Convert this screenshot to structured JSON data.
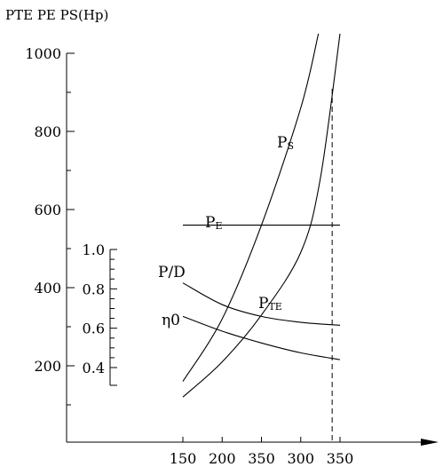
{
  "chart_data": {
    "type": "line",
    "title": "",
    "ylabel": "PTE PE PS(Hp)",
    "y_axis": {
      "ticks": [
        "200",
        "400",
        "600",
        "800",
        "1000"
      ],
      "ylim": [
        0,
        1000
      ]
    },
    "secondary_y_axis": {
      "ticks": [
        "0.4",
        "0.6",
        "0.8",
        "1.0"
      ],
      "ylim": [
        0.4,
        1.0
      ]
    },
    "x_axis": {
      "ticks": [
        "150",
        "200",
        "350",
        "300",
        "350"
      ]
    },
    "annotations": {
      "dashed_vertical_line_at_index": 3.8
    },
    "series": [
      {
        "name": "PS",
        "axis": "primary",
        "label_main": "P",
        "label_sub": "S",
        "points": [
          [
            0,
            160
          ],
          [
            1,
            320
          ],
          [
            2,
            560
          ],
          [
            3,
            860
          ],
          [
            3.45,
            1050
          ]
        ]
      },
      {
        "name": "PE",
        "axis": "primary",
        "label_main": "P",
        "label_sub": "E",
        "points": [
          [
            0,
            560
          ],
          [
            4,
            560
          ]
        ]
      },
      {
        "name": "PTE",
        "axis": "primary",
        "label_main": "P",
        "label_sub": "TE",
        "points": [
          [
            0,
            120
          ],
          [
            1,
            210
          ],
          [
            2,
            330
          ],
          [
            3,
            490
          ],
          [
            3.5,
            680
          ],
          [
            4,
            1050
          ]
        ]
      },
      {
        "name": "P/D",
        "axis": "secondary",
        "label_main": "P/D",
        "points": [
          [
            0,
            0.83
          ],
          [
            1,
            0.72
          ],
          [
            2,
            0.66
          ],
          [
            3,
            0.63
          ],
          [
            4,
            0.615
          ]
        ]
      },
      {
        "name": "η0",
        "axis": "secondary",
        "label_main": "η0",
        "points": [
          [
            0,
            0.66
          ],
          [
            1,
            0.585
          ],
          [
            2,
            0.525
          ],
          [
            3,
            0.475
          ],
          [
            4,
            0.44
          ]
        ]
      }
    ]
  }
}
